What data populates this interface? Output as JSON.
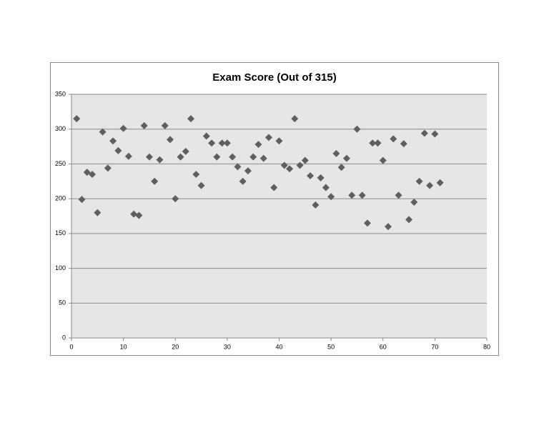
{
  "chart_data": {
    "type": "scatter",
    "title": "Exam Score (Out of 315)",
    "x": [
      1,
      2,
      3,
      4,
      5,
      6,
      7,
      8,
      9,
      10,
      11,
      12,
      13,
      14,
      15,
      16,
      17,
      18,
      19,
      20,
      21,
      22,
      23,
      24,
      25,
      26,
      27,
      28,
      29,
      30,
      31,
      32,
      33,
      34,
      35,
      36,
      37,
      38,
      39,
      40,
      41,
      42,
      43,
      44,
      45,
      46,
      47,
      48,
      49,
      50,
      51,
      52,
      53,
      54,
      55,
      56,
      57,
      58,
      59,
      60,
      61,
      62,
      63,
      64,
      65,
      66,
      67,
      68,
      69,
      70,
      71
    ],
    "y": [
      315,
      199,
      238,
      235,
      180,
      296,
      244,
      283,
      269,
      301,
      261,
      178,
      176,
      305,
      260,
      225,
      256,
      305,
      285,
      200,
      260,
      268,
      315,
      235,
      219,
      290,
      280,
      260,
      280,
      280,
      260,
      246,
      225,
      240,
      260,
      278,
      258,
      288,
      216,
      283,
      248,
      243,
      315,
      248,
      255,
      233,
      191,
      230,
      216,
      203,
      265,
      245,
      258,
      205,
      300,
      205,
      165,
      280,
      280,
      255,
      160,
      286,
      205,
      279,
      170,
      195,
      225,
      294,
      219,
      293,
      223
    ],
    "color": "#5f5f5f",
    "xlim": [
      0,
      80
    ],
    "xticks": [
      0,
      10,
      20,
      30,
      40,
      50,
      60,
      70,
      80
    ],
    "ylim": [
      0,
      350
    ],
    "yticks": [
      0,
      50,
      100,
      150,
      200,
      250,
      300,
      350
    ],
    "grid": true
  }
}
